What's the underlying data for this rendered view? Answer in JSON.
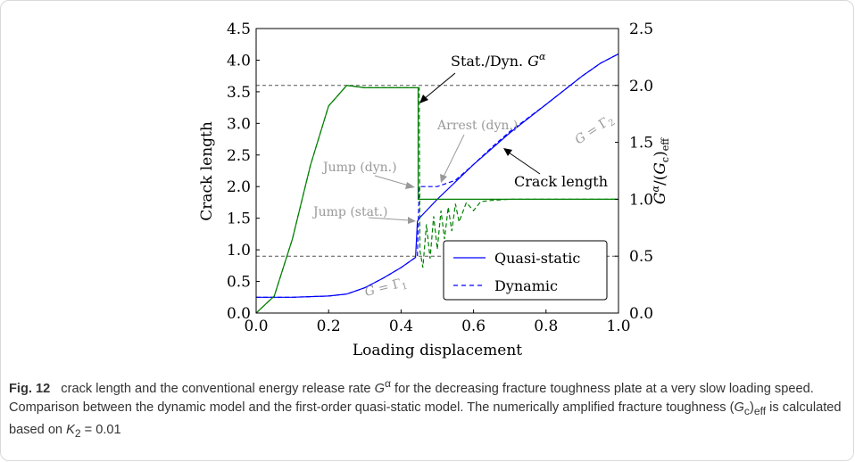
{
  "figure": {
    "label": "Fig. 12",
    "caption_html": "crack length and the conventional energy release rate <i>G</i><sup>α</sup> for the decreasing fracture toughness plate at a very slow loading speed. Comparison between the dynamic model and the first-order quasi-static model. The numerically amplified fracture toughness (<i>G</i><sub>c</sub>)<sub>eff</sub> is calculated based on <i>K</i><sub>2</sub> = 0.01"
  },
  "chart_data": {
    "type": "line",
    "xlabel": "Loading displacement",
    "ylabel": "Crack length",
    "y2label": "G^α/(G_c)_eff",
    "xlim": [
      0.0,
      1.0
    ],
    "ylim": [
      0.0,
      4.5
    ],
    "y2lim": [
      0.0,
      2.5
    ],
    "x_ticks": [
      "0.0",
      "0.2",
      "0.4",
      "0.6",
      "0.8",
      "1.0"
    ],
    "y_ticks": [
      "0.0",
      "0.5",
      "1.0",
      "1.5",
      "2.0",
      "2.5",
      "3.0",
      "3.5",
      "4.0",
      "4.5"
    ],
    "y2_ticks": [
      "0.0",
      "0.5",
      "1.0",
      "1.5",
      "2.0",
      "2.5"
    ],
    "grid": false,
    "legend": {
      "position": "bottom-right",
      "entries": [
        "Quasi-static",
        "Dynamic"
      ]
    },
    "reference_lines": [
      {
        "axis": "y2",
        "value": 2.0,
        "style": "dashed",
        "color": "#555555"
      },
      {
        "axis": "y",
        "value": 0.9,
        "style": "dashed",
        "color": "#555555"
      }
    ],
    "annotations": {
      "stat_dyn": "Stat./Dyn. G^α",
      "arrest": "Arrest (dyn.)",
      "jump_dyn": "Jump (dyn.)",
      "jump_stat": "Jump (stat.)",
      "crack_length": "Crack length",
      "gamma2": "G = Γ2",
      "gamma1": "G = Γ1"
    },
    "series": [
      {
        "name": "Quasi-static",
        "axis": "y",
        "color": "#0000ff",
        "style": "solid",
        "x": [
          0.0,
          0.1,
          0.2,
          0.25,
          0.3,
          0.35,
          0.4,
          0.44,
          0.445,
          0.45,
          0.5,
          0.6,
          0.7,
          0.8,
          0.9,
          0.95,
          1.0
        ],
        "y": [
          0.25,
          0.25,
          0.27,
          0.3,
          0.4,
          0.55,
          0.72,
          0.88,
          1.45,
          1.5,
          1.8,
          2.35,
          2.85,
          3.3,
          3.75,
          3.95,
          4.1
        ]
      },
      {
        "name": "Dynamic",
        "axis": "y",
        "color": "#0000ff",
        "style": "dashed",
        "x": [
          0.0,
          0.1,
          0.2,
          0.25,
          0.3,
          0.35,
          0.4,
          0.445,
          0.45,
          0.46,
          0.5,
          0.55,
          0.6,
          0.65,
          0.7,
          0.8,
          0.9,
          0.95,
          1.0
        ],
        "y": [
          0.25,
          0.25,
          0.27,
          0.3,
          0.4,
          0.55,
          0.72,
          0.9,
          2.0,
          2.0,
          2.0,
          2.1,
          2.35,
          2.62,
          2.87,
          3.3,
          3.75,
          3.95,
          4.1
        ]
      },
      {
        "name": "Quasi-static G^α",
        "axis": "y2",
        "color": "#008000",
        "style": "solid",
        "x": [
          0.0,
          0.05,
          0.1,
          0.15,
          0.2,
          0.25,
          0.3,
          0.35,
          0.4,
          0.445,
          0.447,
          0.447,
          0.45,
          0.5,
          0.6,
          0.8,
          1.0
        ],
        "y": [
          0.0,
          0.15,
          0.65,
          1.3,
          1.82,
          2.0,
          1.98,
          1.98,
          1.98,
          1.98,
          1.98,
          1.0,
          1.0,
          1.0,
          1.0,
          1.0,
          1.0
        ]
      },
      {
        "name": "Dynamic G^α",
        "axis": "y2",
        "color": "#008000",
        "style": "dashed",
        "x": [
          0.0,
          0.05,
          0.1,
          0.15,
          0.2,
          0.25,
          0.3,
          0.35,
          0.4,
          0.45,
          0.452,
          0.46,
          0.47,
          0.48,
          0.49,
          0.5,
          0.51,
          0.52,
          0.53,
          0.54,
          0.55,
          0.56,
          0.58,
          0.6,
          0.62,
          0.65,
          0.7,
          0.8,
          1.0
        ],
        "y": [
          0.0,
          0.15,
          0.65,
          1.3,
          1.82,
          2.0,
          1.98,
          1.98,
          1.98,
          1.98,
          0.55,
          0.4,
          0.78,
          0.48,
          0.85,
          0.56,
          0.9,
          0.65,
          0.93,
          0.72,
          0.96,
          0.8,
          0.97,
          0.9,
          0.98,
          0.99,
          1.0,
          1.0,
          1.0
        ]
      }
    ]
  }
}
